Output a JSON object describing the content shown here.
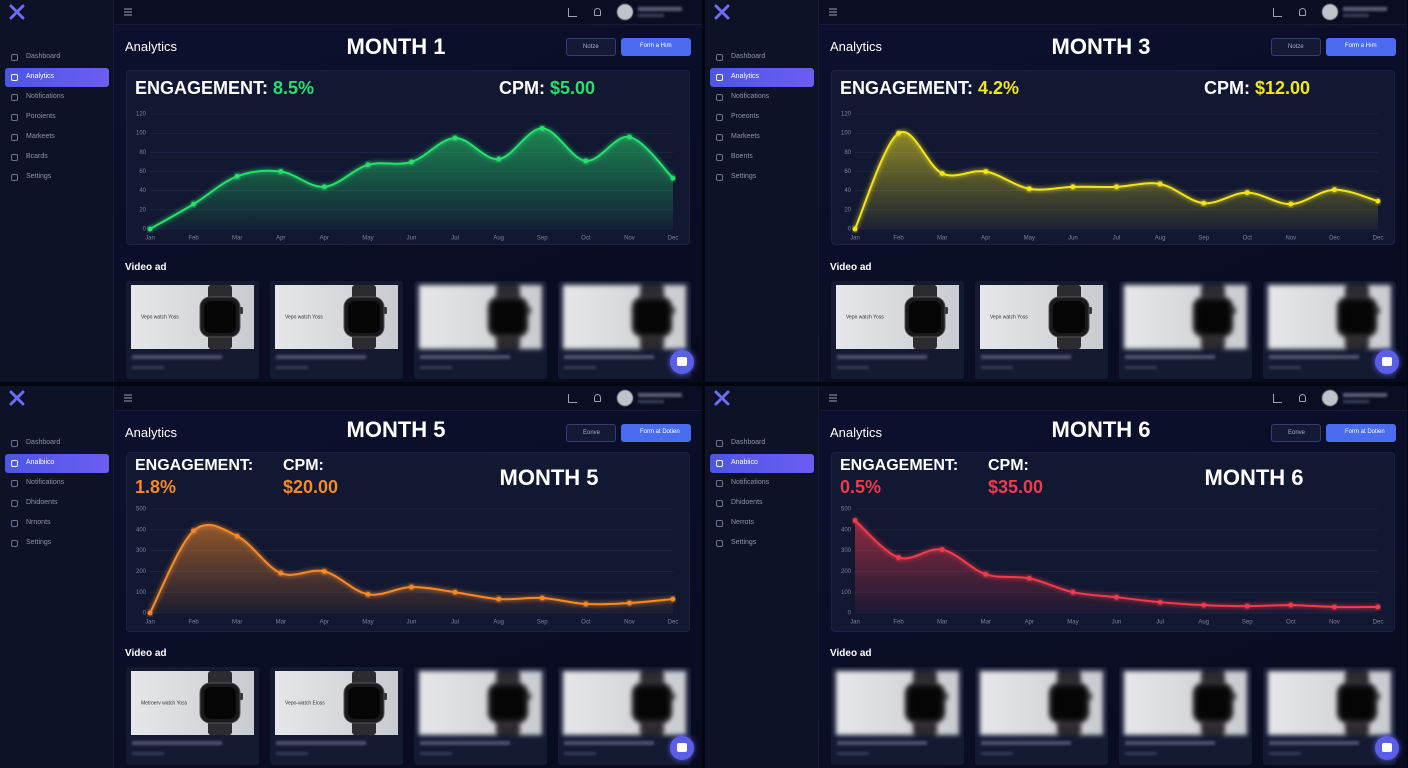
{
  "panels": [
    {
      "sidebar": [
        "Dashboard",
        "Analytics",
        "Notifications",
        "Poroients",
        "Markeets",
        "Bcards",
        "Settings"
      ],
      "active_item": 1,
      "title": "Analytics",
      "month": "MONTH 1",
      "buttons": [
        "Notze",
        "Form a Hım"
      ],
      "engagement_label": "ENGAGEMENT:",
      "engagement": "8.5%",
      "cpm_label": "CPM:",
      "cpm": "$5.00",
      "section": "Video ad",
      "video_ad_texts": [
        "Vepo watch Yoss",
        "Vepo watch Yoss"
      ],
      "chart_data": {
        "type": "line",
        "color": "#25e06c",
        "grid": true,
        "categories": [
          "Jan",
          "Feb",
          "Mar",
          "Apr",
          "Apr",
          "May",
          "Jun",
          "Jul",
          "Aug",
          "Sep",
          "Oct",
          "Nov",
          "Dec"
        ],
        "values": [
          0,
          26,
          55,
          60,
          44,
          67,
          70,
          95,
          73,
          105,
          71,
          96,
          53
        ],
        "ylim": [
          0,
          120
        ],
        "yticks": [
          0,
          20,
          40,
          60,
          80,
          100,
          120
        ]
      }
    },
    {
      "sidebar": [
        "Dashboard",
        "Analytics",
        "Notifications",
        "Proeonts",
        "Markeets",
        "Boents",
        "Settings"
      ],
      "active_item": 1,
      "title": "Analytics",
      "month": "MONTH 3",
      "buttons": [
        "Notze",
        "Form a Hım"
      ],
      "engagement_label": "ENGAGEMENT:",
      "engagement": "4.2%",
      "cpm_label": "CPM:",
      "cpm": "$12.00",
      "section": "Video ad",
      "video_ad_texts": [
        "Vepo watch Yoss",
        "Vepo watch Yoss"
      ],
      "chart_data": {
        "type": "line",
        "color": "#f2e41e",
        "grid": true,
        "categories": [
          "Jan",
          "Feb",
          "Mar",
          "Apr",
          "May",
          "Jun",
          "Jul",
          "Aug",
          "Sep",
          "Oct",
          "Nov",
          "Dec",
          "Dec"
        ],
        "values": [
          0,
          100,
          58,
          60,
          42,
          44,
          44,
          47,
          27,
          38,
          26,
          41,
          29
        ],
        "ylim": [
          0,
          120
        ],
        "yticks": [
          0,
          20,
          40,
          60,
          80,
          100,
          120
        ]
      }
    },
    {
      "sidebar": [
        "Dashboard",
        "Analbiico",
        "Notifications",
        "Dhidoents",
        "Nrnonts",
        "Settings"
      ],
      "active_item": 1,
      "title": "Analytics",
      "month": "MONTH 5",
      "card_label": "MONTH 5",
      "buttons": [
        "Eonve",
        "Form at Dotien"
      ],
      "engagement_label": "ENGAGEMENT:",
      "engagement": "1.8%",
      "cpm_label": "CPM:",
      "cpm": "$20.00",
      "section": "Video ad",
      "video_ad_texts": [
        "Metroerv watch Yoss",
        "Vepo-watch Eioss"
      ],
      "chart_data": {
        "type": "line",
        "color": "#f78a26",
        "grid": true,
        "categories": [
          "Jan",
          "Feb",
          "Mar",
          "Mar",
          "Apr",
          "May",
          "Jun",
          "Jul",
          "Aug",
          "Sep",
          "Oct",
          "Nov",
          "Dec"
        ],
        "values": [
          0,
          395,
          370,
          192,
          200,
          90,
          125,
          100,
          67,
          72,
          43,
          48,
          67
        ],
        "ylim": [
          0,
          500
        ],
        "yticks": [
          0,
          100,
          200,
          300,
          400,
          500
        ]
      }
    },
    {
      "sidebar": [
        "Dashboard",
        "Anabiico",
        "Notifications",
        "Dhidoents",
        "Nerrots",
        "Settings"
      ],
      "active_item": 1,
      "title": "Analytics",
      "month": "MONTH 6",
      "card_label": "MONTH 6",
      "buttons": [
        "Eonve",
        "Form at Dotien"
      ],
      "engagement_label": "ENGAGEMENT:",
      "engagement": "0.5%",
      "cpm_label": "CPM:",
      "cpm": "$35.00",
      "section": "Video ad",
      "video_ad_texts": [],
      "chart_data": {
        "type": "line",
        "color": "#f23a4c",
        "grid": true,
        "categories": [
          "Jan",
          "Feb",
          "Mar",
          "Mar",
          "Apr",
          "May",
          "Jun",
          "Jul",
          "Aug",
          "Sep",
          "Oct",
          "Nov",
          "Dec"
        ],
        "values": [
          445,
          267,
          305,
          186,
          167,
          100,
          76,
          52,
          38,
          33,
          38,
          29,
          29
        ],
        "ylim": [
          0,
          500
        ],
        "yticks": [
          0,
          100,
          200,
          300,
          400,
          500
        ]
      }
    }
  ]
}
